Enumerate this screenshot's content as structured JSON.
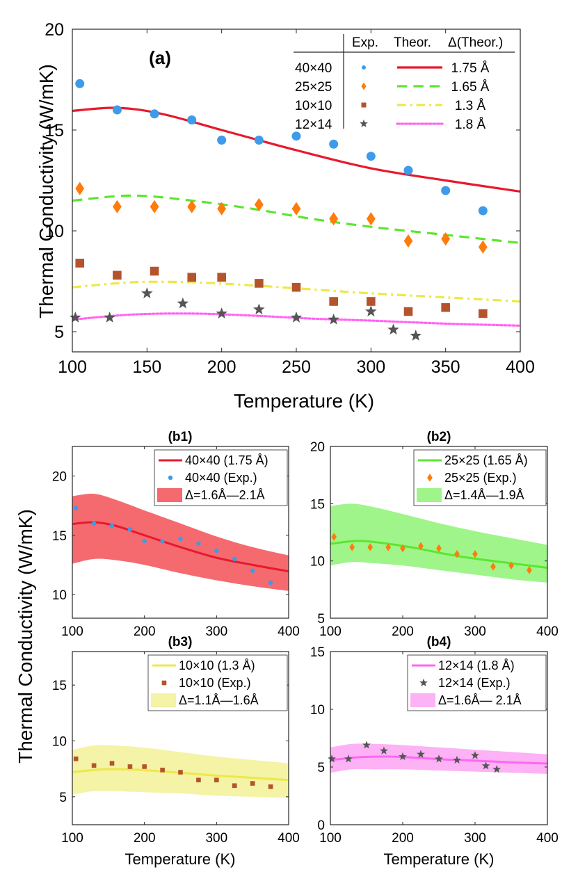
{
  "figure": {
    "ylabel": "Thermal Conductivity (W/mK)",
    "xlabel": "Temperature (K)"
  },
  "chart_data": [
    {
      "id": "a",
      "type": "scatter",
      "panel_label": "(a)",
      "xlabel": "Temperature (K)",
      "ylabel": "Thermal Conductivity (W/mK)",
      "xlim": [
        100,
        400
      ],
      "ylim": [
        4,
        20
      ],
      "xticks": [
        100,
        150,
        200,
        250,
        300,
        350,
        400
      ],
      "yticks": [
        5,
        10,
        15,
        20
      ],
      "legend": {
        "position": "top-right",
        "headers": [
          "Exp.",
          "Theor.",
          "Δ(Theor.)"
        ],
        "rows": [
          {
            "size": "40×40",
            "delta": "1.75 Å"
          },
          {
            "size": "25×25",
            "delta": "1.65 Å"
          },
          {
            "size": "10×10",
            "delta": "1.3 Å"
          },
          {
            "size": "12×14",
            "delta": "1.8 Å"
          }
        ]
      },
      "series": [
        {
          "name": "40×40 Exp.",
          "kind": "points",
          "marker": "circle",
          "color": "#3d9be9",
          "x": [
            105,
            130,
            155,
            180,
            200,
            225,
            250,
            275,
            300,
            325,
            350,
            375
          ],
          "y": [
            17.3,
            16.0,
            15.8,
            15.5,
            14.5,
            14.5,
            14.7,
            14.3,
            13.7,
            13.0,
            12.0,
            11.0
          ]
        },
        {
          "name": "40×40 Theor.",
          "kind": "line",
          "style": "solid",
          "color": "#e8192c",
          "x": [
            100,
            130,
            160,
            200,
            250,
            300,
            350,
            400
          ],
          "y": [
            15.95,
            16.1,
            15.8,
            15.0,
            14.0,
            13.1,
            12.5,
            11.95
          ]
        },
        {
          "name": "25×25 Exp.",
          "kind": "points",
          "marker": "diamond",
          "color": "#ff7c0a",
          "x": [
            105,
            130,
            155,
            180,
            200,
            225,
            250,
            275,
            300,
            325,
            350,
            375
          ],
          "y": [
            12.1,
            11.2,
            11.2,
            11.2,
            11.1,
            11.3,
            11.1,
            10.6,
            10.6,
            9.5,
            9.6,
            9.2
          ]
        },
        {
          "name": "25×25 Theor.",
          "kind": "line",
          "style": "dashed",
          "color": "#5ce62e",
          "x": [
            100,
            140,
            180,
            220,
            260,
            300,
            350,
            400
          ],
          "y": [
            11.5,
            11.75,
            11.5,
            11.1,
            10.6,
            10.2,
            9.8,
            9.4
          ]
        },
        {
          "name": "10×10 Exp.",
          "kind": "points",
          "marker": "square",
          "color": "#b5532c",
          "x": [
            105,
            130,
            155,
            180,
            200,
            225,
            250,
            275,
            300,
            325,
            350,
            375
          ],
          "y": [
            8.4,
            7.8,
            8.0,
            7.7,
            7.7,
            7.4,
            7.2,
            6.5,
            6.5,
            6.0,
            6.2,
            5.9
          ]
        },
        {
          "name": "10×10 Theor.",
          "kind": "line",
          "style": "dashdot",
          "color": "#ede848",
          "x": [
            100,
            140,
            180,
            220,
            260,
            300,
            350,
            400
          ],
          "y": [
            7.2,
            7.45,
            7.45,
            7.3,
            7.1,
            6.9,
            6.7,
            6.5
          ]
        },
        {
          "name": "12×14 Exp.",
          "kind": "points",
          "marker": "star",
          "color": "#555555",
          "x": [
            102,
            125,
            150,
            174,
            200,
            225,
            250,
            275,
            300,
            315,
            330
          ],
          "y": [
            5.7,
            5.7,
            6.9,
            6.4,
            5.9,
            6.1,
            5.7,
            5.6,
            6.0,
            5.1,
            4.8
          ]
        },
        {
          "name": "12×14 Theor.",
          "kind": "line",
          "style": "dotted",
          "color": "#ff66f2",
          "x": [
            100,
            140,
            180,
            220,
            260,
            300,
            350,
            400
          ],
          "y": [
            5.6,
            5.85,
            5.9,
            5.8,
            5.65,
            5.55,
            5.4,
            5.3
          ]
        }
      ]
    },
    {
      "id": "b1",
      "type": "line",
      "panel_label": "(b1)",
      "xlim": [
        100,
        400
      ],
      "ylim": [
        8,
        22.5
      ],
      "xticks": [
        100,
        200,
        300,
        400
      ],
      "yticks": [
        10,
        15,
        20
      ],
      "legend": {
        "position": "top-right",
        "entries": [
          "40×40 (1.75 Å)",
          "40×40 (Exp.)",
          "Δ=1.6Å—2.1Å"
        ]
      },
      "line": {
        "color": "#e8192c",
        "x": [
          100,
          130,
          160,
          200,
          250,
          300,
          350,
          400
        ],
        "y": [
          15.95,
          16.1,
          15.8,
          15.0,
          14.0,
          13.1,
          12.5,
          11.95
        ]
      },
      "points": {
        "marker": "circle",
        "color": "#3d9be9",
        "x": [
          105,
          130,
          155,
          180,
          200,
          225,
          250,
          275,
          300,
          325,
          350,
          375
        ],
        "y": [
          17.3,
          16.0,
          15.8,
          15.5,
          14.5,
          14.5,
          14.7,
          14.3,
          13.7,
          13.0,
          12.0,
          11.0
        ]
      },
      "band": {
        "color": "#f46a6f",
        "x": [
          100,
          130,
          160,
          200,
          250,
          300,
          350,
          400
        ],
        "upper": [
          18.3,
          18.5,
          18.0,
          17.1,
          16.0,
          14.9,
          14.0,
          13.3
        ],
        "lower": [
          12.6,
          13.0,
          12.9,
          12.5,
          11.8,
          11.2,
          10.7,
          10.3
        ]
      }
    },
    {
      "id": "b2",
      "type": "line",
      "panel_label": "(b2)",
      "xlim": [
        100,
        400
      ],
      "ylim": [
        5,
        20
      ],
      "xticks": [
        100,
        200,
        300,
        400
      ],
      "yticks": [
        5,
        10,
        15,
        20
      ],
      "legend": {
        "position": "top-right",
        "entries": [
          "25×25 (1.65 Å)",
          "25×25 (Exp.)",
          "Δ=1.4Å—1.9Å"
        ]
      },
      "line": {
        "color": "#5ce62e",
        "x": [
          100,
          140,
          180,
          220,
          260,
          300,
          350,
          400
        ],
        "y": [
          11.5,
          11.75,
          11.5,
          11.1,
          10.6,
          10.2,
          9.8,
          9.4
        ]
      },
      "points": {
        "marker": "diamond",
        "color": "#ff7c0a",
        "x": [
          105,
          130,
          155,
          180,
          200,
          225,
          250,
          275,
          300,
          325,
          350,
          375
        ],
        "y": [
          12.1,
          11.2,
          11.2,
          11.2,
          11.1,
          11.3,
          11.1,
          10.6,
          10.6,
          9.5,
          9.6,
          9.2
        ]
      },
      "band": {
        "color": "#9ff58a",
        "x": [
          100,
          130,
          160,
          200,
          250,
          300,
          350,
          400
        ],
        "upper": [
          14.8,
          15.0,
          14.7,
          14.1,
          13.3,
          12.6,
          12.0,
          11.4
        ],
        "lower": [
          9.6,
          9.9,
          9.8,
          9.6,
          9.2,
          8.8,
          8.4,
          8.1
        ]
      }
    },
    {
      "id": "b3",
      "type": "line",
      "panel_label": "(b3)",
      "xlim": [
        100,
        400
      ],
      "ylim": [
        2.5,
        18
      ],
      "xticks": [
        100,
        200,
        300,
        400
      ],
      "yticks": [
        5,
        10,
        15
      ],
      "legend": {
        "position": "top-right",
        "entries": [
          "10×10 (1.3 Å)",
          "10×10 (Exp.)",
          "Δ=1.1Å—1.6Å"
        ]
      },
      "line": {
        "color": "#ede848",
        "x": [
          100,
          140,
          180,
          220,
          260,
          300,
          350,
          400
        ],
        "y": [
          7.2,
          7.45,
          7.45,
          7.3,
          7.1,
          6.9,
          6.7,
          6.5
        ]
      },
      "points": {
        "marker": "square",
        "color": "#b5532c",
        "x": [
          105,
          130,
          155,
          180,
          200,
          225,
          250,
          275,
          300,
          325,
          350,
          375
        ],
        "y": [
          8.4,
          7.8,
          8.0,
          7.7,
          7.7,
          7.4,
          7.2,
          6.5,
          6.5,
          6.0,
          6.2,
          5.9
        ]
      },
      "band": {
        "color": "#f4f3a6",
        "x": [
          100,
          130,
          160,
          200,
          250,
          300,
          350,
          400
        ],
        "upper": [
          9.2,
          9.6,
          9.6,
          9.4,
          9.0,
          8.6,
          8.3,
          8.0
        ],
        "lower": [
          5.2,
          5.5,
          5.5,
          5.4,
          5.3,
          5.1,
          5.0,
          4.9
        ]
      }
    },
    {
      "id": "b4",
      "type": "line",
      "panel_label": "(b4)",
      "xlim": [
        100,
        400
      ],
      "ylim": [
        0,
        15
      ],
      "xticks": [
        100,
        200,
        300,
        400
      ],
      "yticks": [
        0,
        5,
        10,
        15
      ],
      "legend": {
        "position": "top-right",
        "entries": [
          "12×14 (1.8 Å)",
          "12×14 (Exp.)",
          "Δ=1.6Å— 2.1Å"
        ]
      },
      "line": {
        "color": "#ff66f2",
        "x": [
          100,
          140,
          180,
          220,
          260,
          300,
          350,
          400
        ],
        "y": [
          5.6,
          5.85,
          5.9,
          5.8,
          5.65,
          5.55,
          5.4,
          5.3
        ]
      },
      "points": {
        "marker": "star",
        "color": "#555555",
        "x": [
          102,
          125,
          150,
          174,
          200,
          225,
          250,
          275,
          300,
          315,
          330
        ],
        "y": [
          5.7,
          5.7,
          6.9,
          6.4,
          5.9,
          6.1,
          5.7,
          5.6,
          6.0,
          5.1,
          4.8
        ]
      },
      "band": {
        "color": "#fcb2f5",
        "x": [
          100,
          130,
          160,
          200,
          250,
          300,
          350,
          400
        ],
        "upper": [
          6.7,
          7.0,
          7.0,
          6.9,
          6.7,
          6.5,
          6.3,
          6.1
        ],
        "lower": [
          4.5,
          4.8,
          4.8,
          4.8,
          4.7,
          4.6,
          4.5,
          4.4
        ]
      }
    }
  ]
}
